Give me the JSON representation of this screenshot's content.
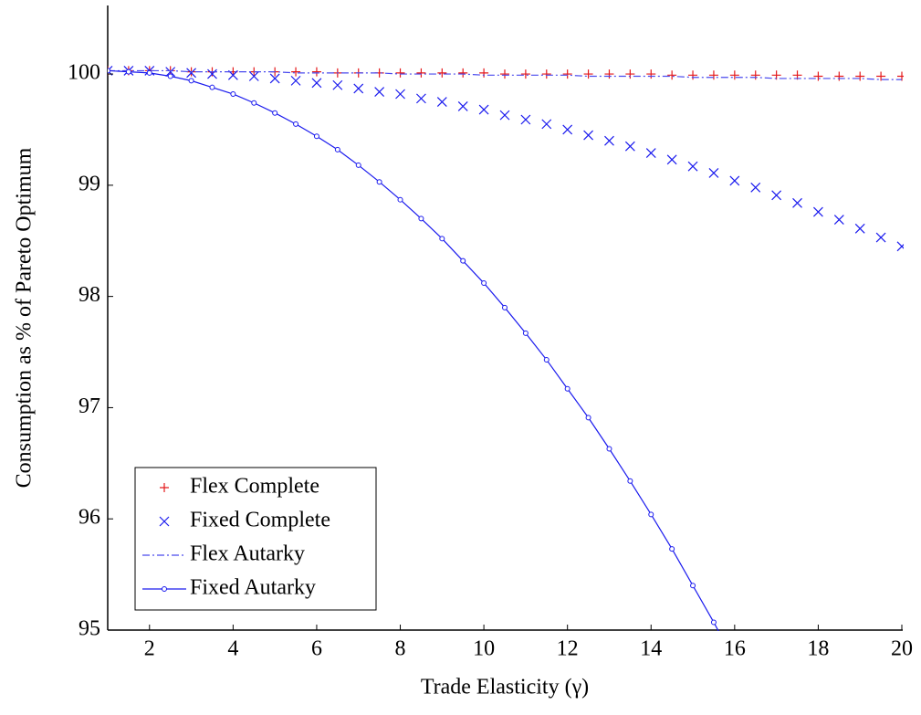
{
  "chart_data": {
    "type": "line",
    "x_label": "Trade Elasticity (γ)",
    "y_label": "Consumption as % of Pareto Optimum",
    "x": [
      1,
      1.5,
      2,
      2.5,
      3,
      3.5,
      4,
      4.5,
      5,
      5.5,
      6,
      6.5,
      7,
      7.5,
      8,
      8.5,
      9,
      9.5,
      10,
      10.5,
      11,
      11.5,
      12,
      12.5,
      13,
      13.5,
      14,
      14.5,
      15,
      15.5,
      16,
      16.5,
      17,
      17.5,
      18,
      18.5,
      19,
      19.5,
      20
    ],
    "series": [
      {
        "name": "Flex Complete",
        "color": "#e41a1c",
        "marker": "plus",
        "values": [
          100.03,
          100.03,
          100.03,
          100.03,
          100.02,
          100.02,
          100.02,
          100.02,
          100.02,
          100.02,
          100.02,
          100.01,
          100.01,
          100.01,
          100.01,
          100.01,
          100.01,
          100.01,
          100.01,
          100.0,
          100.0,
          100.0,
          100.0,
          100.0,
          100.0,
          100.0,
          100.0,
          99.99,
          99.99,
          99.99,
          99.99,
          99.99,
          99.99,
          99.99,
          99.98,
          99.98,
          99.98,
          99.98,
          99.98
        ]
      },
      {
        "name": "Fixed Complete",
        "color": "#1a1aee",
        "marker": "cross",
        "values": [
          100.03,
          100.03,
          100.03,
          100.02,
          100.01,
          100.0,
          99.99,
          99.98,
          99.96,
          99.94,
          99.92,
          99.9,
          99.87,
          99.84,
          99.82,
          99.78,
          99.75,
          99.71,
          99.68,
          99.63,
          99.59,
          99.55,
          99.5,
          99.45,
          99.4,
          99.35,
          99.29,
          99.23,
          99.17,
          99.11,
          99.04,
          98.98,
          98.91,
          98.84,
          98.76,
          98.69,
          98.61,
          98.53,
          98.45
        ]
      },
      {
        "name": "Flex Autarky",
        "color": "#4a4aee",
        "marker": "dashdot",
        "values": [
          100.03,
          100.03,
          100.03,
          100.03,
          100.02,
          100.02,
          100.02,
          100.02,
          100.02,
          100.01,
          100.01,
          100.01,
          100.01,
          100.01,
          100.0,
          100.0,
          100.0,
          100.0,
          99.99,
          99.99,
          99.99,
          99.99,
          99.99,
          99.98,
          99.98,
          99.98,
          99.98,
          99.98,
          99.97,
          99.97,
          99.97,
          99.97,
          99.96,
          99.96,
          99.96,
          99.96,
          99.96,
          99.95,
          99.95
        ]
      },
      {
        "name": "Fixed Autarky",
        "color": "#1a1aee",
        "marker": "circle",
        "values": [
          100.03,
          100.02,
          100.01,
          99.98,
          99.94,
          99.88,
          99.82,
          99.74,
          99.65,
          99.55,
          99.44,
          99.32,
          99.18,
          99.03,
          98.87,
          98.7,
          98.52,
          98.32,
          98.12,
          97.9,
          97.67,
          97.43,
          97.17,
          96.91,
          96.63,
          96.34,
          96.04,
          95.73,
          95.4,
          95.07,
          94.72,
          null,
          null,
          null,
          null,
          null,
          null,
          null,
          null
        ]
      }
    ],
    "xlim": [
      1,
      20
    ],
    "xticks": [
      2,
      4,
      6,
      8,
      10,
      12,
      14,
      16,
      18,
      20
    ],
    "ylim": [
      95,
      100.6
    ],
    "yticks": [
      95,
      96,
      97,
      98,
      99,
      100
    ],
    "legend": "lower left"
  }
}
